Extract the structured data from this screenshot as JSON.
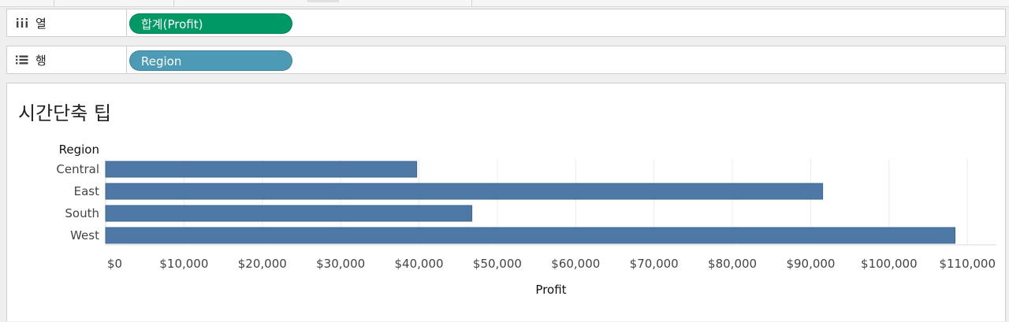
{
  "shelves": {
    "columns": {
      "label": "열",
      "pill": "합계(Profit)",
      "pill_color": "#009966"
    },
    "rows": {
      "label": "행",
      "pill": "Region",
      "pill_color": "#4c9ab5"
    }
  },
  "icons": {
    "columns": "column-bars-icon",
    "rows": "row-list-icon"
  },
  "chart_data": {
    "type": "bar",
    "orientation": "horizontal",
    "title": "시간단축 팁",
    "category_header": "Region",
    "categories": [
      "Central",
      "East",
      "South",
      "West"
    ],
    "values": [
      39706,
      91523,
      46749,
      108418
    ],
    "xlabel": "Profit",
    "xlim": [
      0,
      112000
    ],
    "x_ticks": [
      0,
      10000,
      20000,
      30000,
      40000,
      50000,
      60000,
      70000,
      80000,
      90000,
      100000,
      110000
    ],
    "x_tick_labels": [
      "$0",
      "$10,000",
      "$20,000",
      "$30,000",
      "$40,000",
      "$50,000",
      "$60,000",
      "$70,000",
      "$80,000",
      "$90,000",
      "$100,000",
      "$110,000"
    ],
    "bar_color": "#4e79a7",
    "grid": true
  }
}
